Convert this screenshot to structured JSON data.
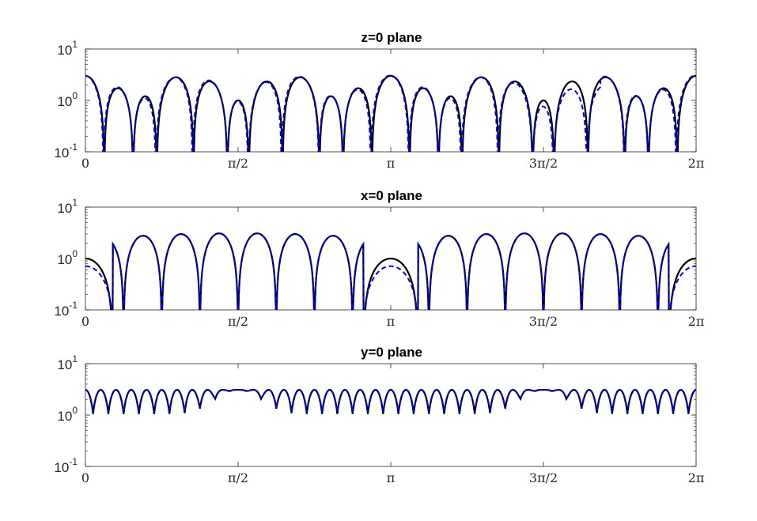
{
  "chart_data": [
    {
      "type": "line",
      "title": "z=0 plane",
      "xlabel": "",
      "ylabel": "",
      "yscale": "log",
      "ylim": [
        0.1,
        10
      ],
      "xlim": [
        0,
        6.2832
      ],
      "yticks": [
        {
          "base": "10",
          "exp": "-1",
          "value": 0.1
        },
        {
          "base": "10",
          "exp": "0",
          "value": 1
        },
        {
          "base": "10",
          "exp": "1",
          "value": 10
        }
      ],
      "xticks": [
        {
          "label": "0",
          "value": 0
        },
        {
          "label": "π/2",
          "value": 1.5708
        },
        {
          "label": "π",
          "value": 3.1416
        },
        {
          "label": "3π/2",
          "value": 4.7124
        },
        {
          "label": "2π",
          "value": 6.2832
        }
      ],
      "series": [
        {
          "style": "solid",
          "color": "#000000",
          "params": {
            "kind": "z",
            "a": 2.0,
            "b": 1.0,
            "f1": 20,
            "f2": 4,
            "p1": 0.0,
            "p2": 0.0,
            "m": 0.0
          }
        },
        {
          "style": "dashed",
          "color": "#0000ee",
          "params": {
            "kind": "z",
            "a": 2.0,
            "b": 1.05,
            "f1": 20,
            "f2": 4,
            "p1": 0.06,
            "p2": 0.12,
            "m": 0.35
          }
        }
      ]
    },
    {
      "type": "line",
      "title": "x=0 plane",
      "xlabel": "",
      "ylabel": "",
      "yscale": "log",
      "ylim": [
        0.1,
        10
      ],
      "xlim": [
        0,
        6.2832
      ],
      "yticks": [
        {
          "base": "10",
          "exp": "-1",
          "value": 0.1
        },
        {
          "base": "10",
          "exp": "0",
          "value": 1
        },
        {
          "base": "10",
          "exp": "1",
          "value": 10
        }
      ],
      "xticks": [
        {
          "label": "0",
          "value": 0
        },
        {
          "label": "π/2",
          "value": 1.5708
        },
        {
          "label": "π",
          "value": 3.1416
        },
        {
          "label": "3π/2",
          "value": 4.7124
        },
        {
          "label": "2π",
          "value": 6.2832
        }
      ],
      "series": [
        {
          "style": "solid",
          "color": "#000000",
          "params": {
            "kind": "x",
            "amp": 3.1,
            "f1": 16,
            "c": 1.0,
            "m": 0.0
          }
        },
        {
          "style": "dashed",
          "color": "#0000ee",
          "params": {
            "kind": "x",
            "amp": 3.1,
            "f1": 16,
            "c": 0.65,
            "m": 0.06
          }
        }
      ]
    },
    {
      "type": "line",
      "title": "y=0 plane",
      "xlabel": "",
      "ylabel": "",
      "yscale": "log",
      "ylim": [
        0.1,
        10
      ],
      "xlim": [
        0,
        6.2832
      ],
      "yticks": [
        {
          "base": "10",
          "exp": "-1",
          "value": 0.1
        },
        {
          "base": "10",
          "exp": "0",
          "value": 1
        },
        {
          "base": "10",
          "exp": "1",
          "value": 10
        }
      ],
      "xticks": [
        {
          "label": "0",
          "value": 0
        },
        {
          "label": "π/2",
          "value": 1.5708
        },
        {
          "label": "π",
          "value": 3.1416
        },
        {
          "label": "3π/2",
          "value": 4.7124
        },
        {
          "label": "2π",
          "value": 6.2832
        }
      ],
      "series": [
        {
          "style": "solid",
          "color": "#000000",
          "params": {
            "kind": "y",
            "lo": 1.05,
            "hi": 3.1,
            "f1": 40,
            "m": 0.0
          }
        },
        {
          "style": "dashed",
          "color": "#0000ee",
          "params": {
            "kind": "y",
            "lo": 1.12,
            "hi": 3.1,
            "f1": 40,
            "m": 0.0
          }
        }
      ]
    }
  ]
}
